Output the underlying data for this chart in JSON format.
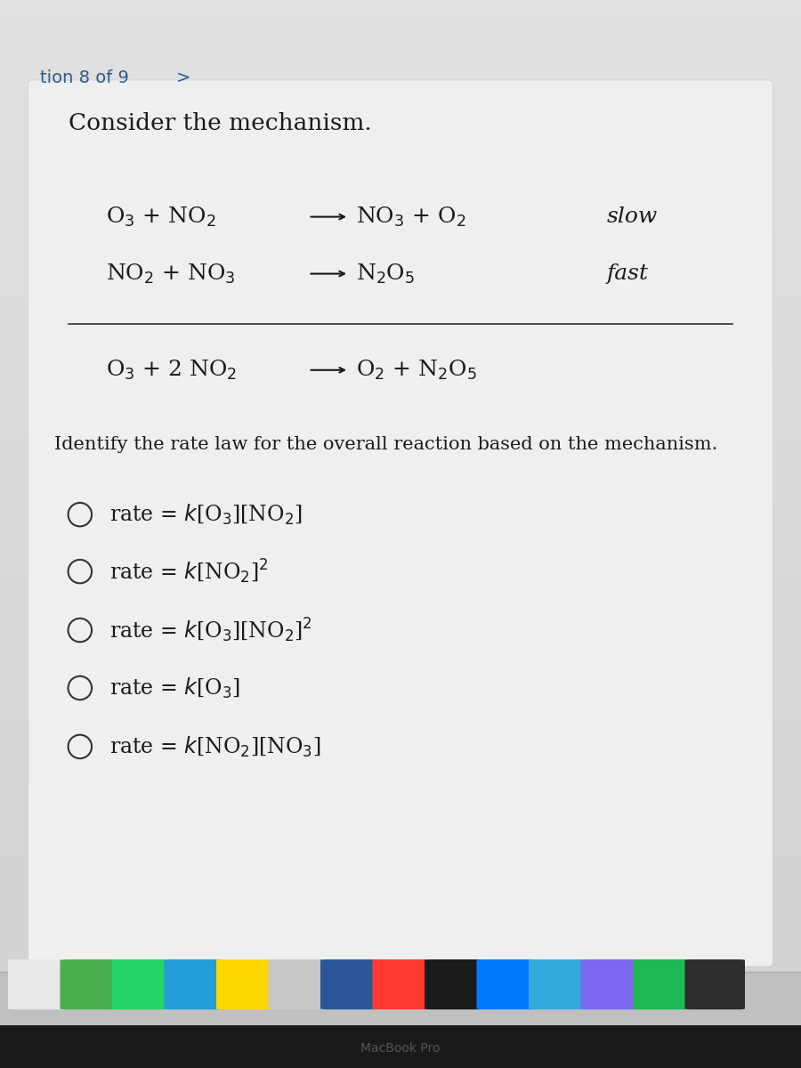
{
  "bg_color_top": "#dde0e8",
  "bg_color_mid": "#d5d8e0",
  "bg_color_bot": "#c8cbd3",
  "card_color": "#f0f0f0",
  "dock_color": "#b8b8b8",
  "header_text": "tion 8 of 9",
  "header_arrow": ">",
  "title": "Consider the mechanism.",
  "step1_label": "slow",
  "step2_label": "fast",
  "question": "Identify the rate law for the overall reaction based on the mechanism.",
  "choices": [
    "rate = $k$[O$_3$][NO$_2$]",
    "rate = $k$[NO$_2$]$^2$",
    "rate = $k$[O$_3$][NO$_2$]$^2$",
    "rate = $k$[O$_3$]",
    "rate = $k$[NO$_2$][NO$_3$]"
  ],
  "text_color": "#1a1a1a",
  "header_color": "#2d5a8e",
  "font_size_title": 19,
  "font_size_eq": 18,
  "font_size_choices": 17,
  "font_size_header": 14,
  "font_size_question": 15
}
